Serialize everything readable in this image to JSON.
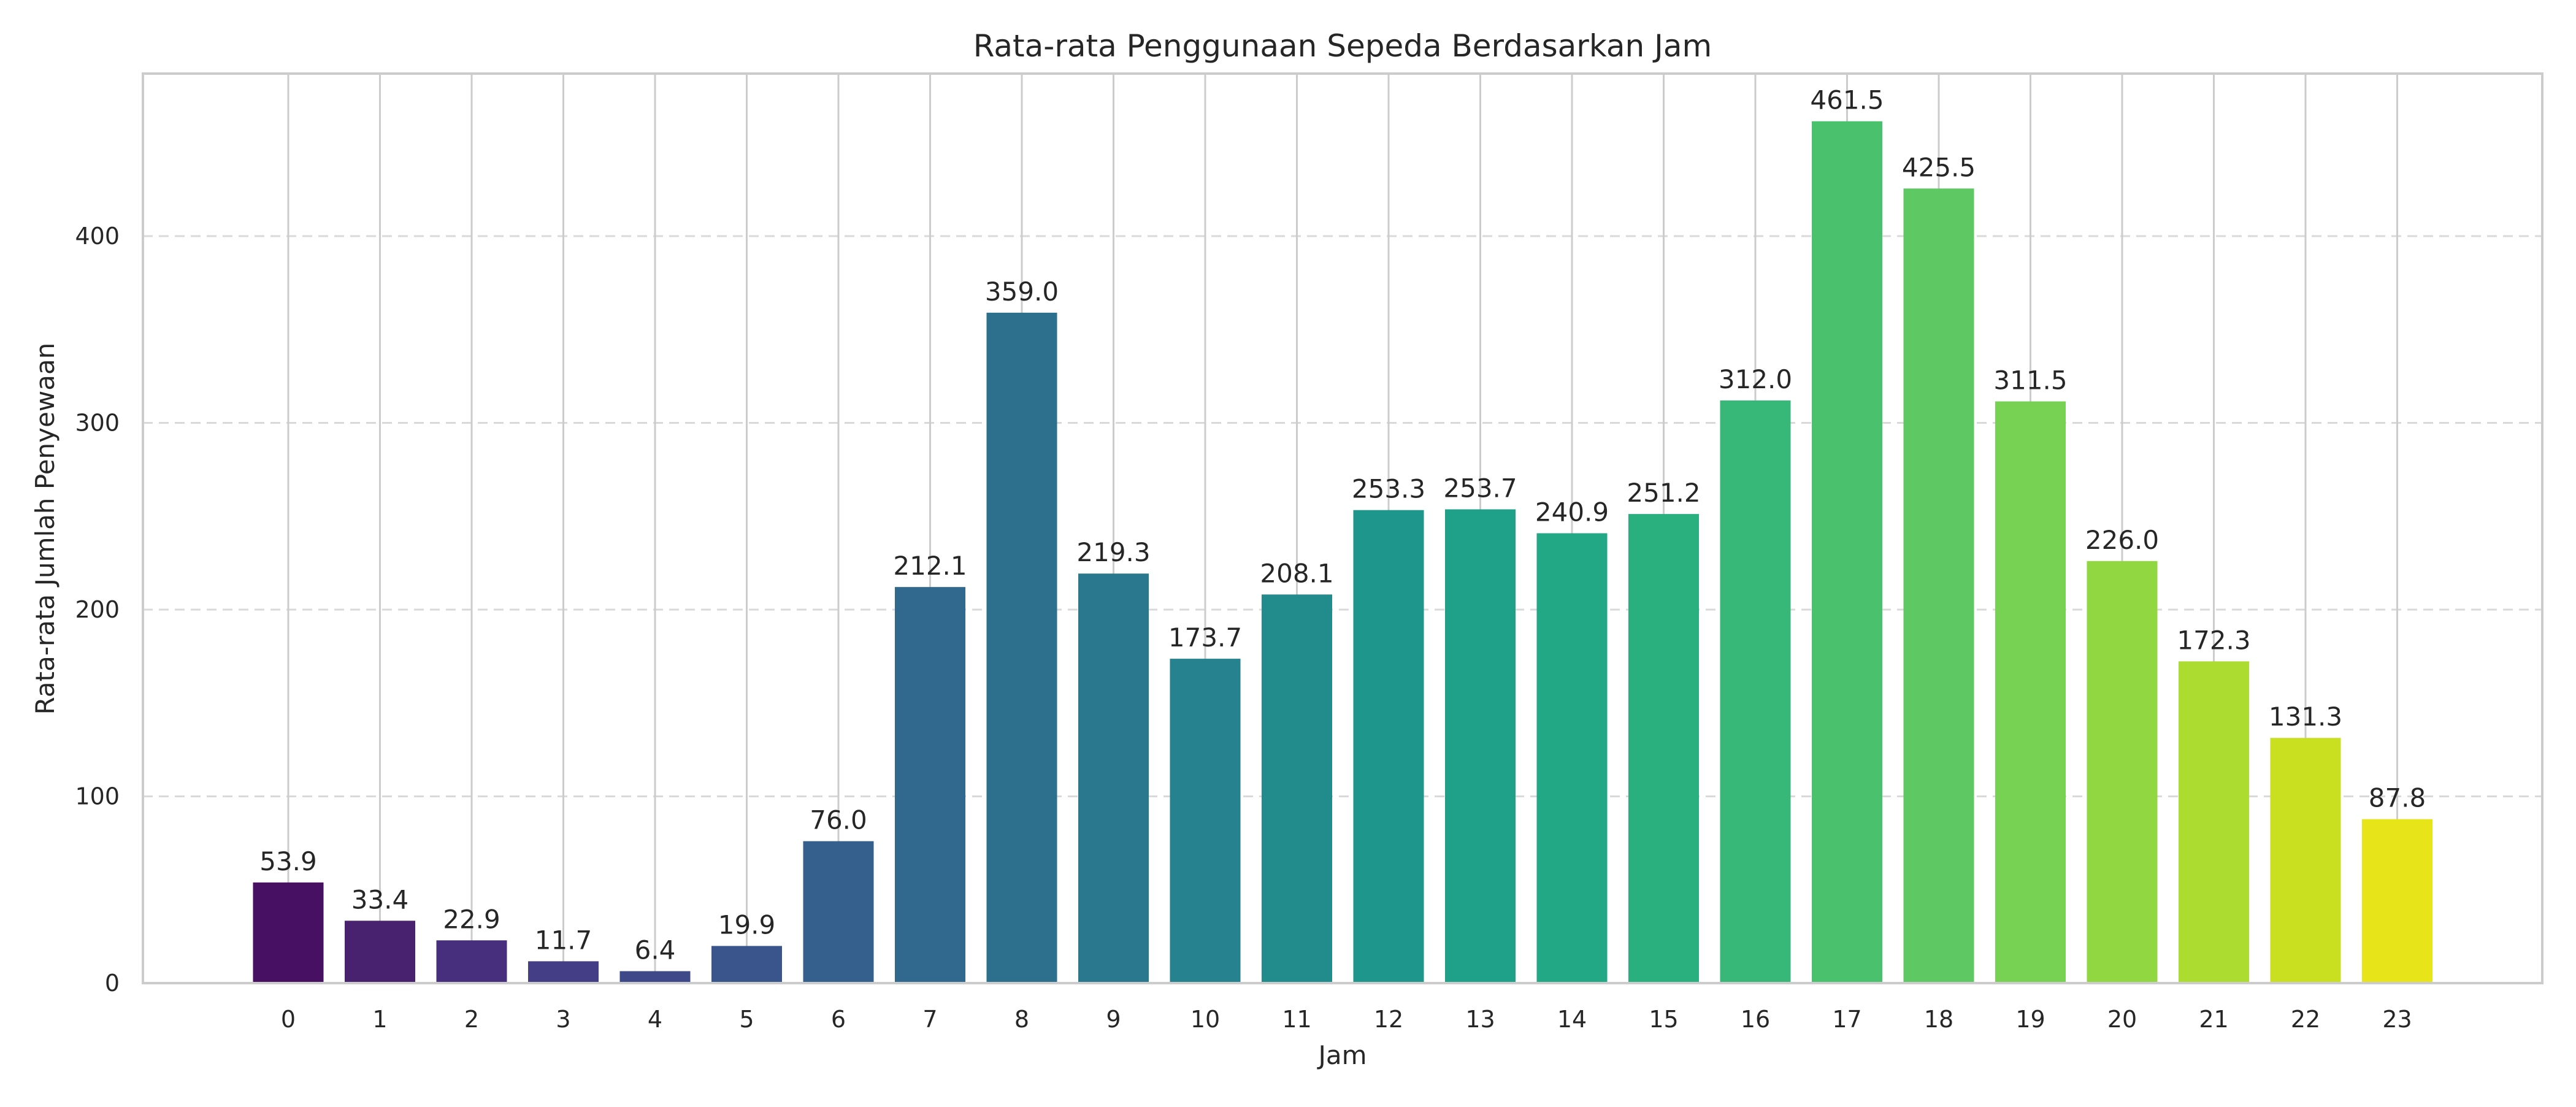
{
  "chart_data": {
    "type": "bar",
    "title": "Rata-rata Penggunaan Sepeda Berdasarkan Jam",
    "xlabel": "Jam",
    "ylabel": "Rata-rata Jumlah Penyewaan",
    "categories": [
      "0",
      "1",
      "2",
      "3",
      "4",
      "5",
      "6",
      "7",
      "8",
      "9",
      "10",
      "11",
      "12",
      "13",
      "14",
      "15",
      "16",
      "17",
      "18",
      "19",
      "20",
      "21",
      "22",
      "23"
    ],
    "values": [
      53.9,
      33.4,
      22.9,
      11.7,
      6.4,
      19.9,
      76.0,
      212.1,
      359.0,
      219.3,
      173.7,
      208.1,
      253.3,
      253.7,
      240.9,
      251.2,
      312.0,
      461.5,
      425.5,
      311.5,
      226.0,
      172.3,
      131.3,
      87.8
    ],
    "data_labels": [
      "53.9",
      "33.4",
      "22.9",
      "11.7",
      "6.4",
      "19.9",
      "76.0",
      "212.1",
      "359.0",
      "219.3",
      "173.7",
      "208.1",
      "253.3",
      "253.7",
      "240.9",
      "251.2",
      "312.0",
      "461.5",
      "425.5",
      "311.5",
      "226.0",
      "172.3",
      "131.3",
      "87.8"
    ],
    "ylim": [
      0,
      485
    ],
    "yticks": [
      0,
      100,
      200,
      300,
      400
    ],
    "grid": "y dashed, x solid",
    "colors": [
      "#471063",
      "#48226e",
      "#472f7d",
      "#433e85",
      "#3e4989",
      "#3a548c",
      "#355f8d",
      "#31688e",
      "#2d708e",
      "#2a788e",
      "#26828e",
      "#228c8d",
      "#1f968b",
      "#1fa088",
      "#22a884",
      "#2ab07f",
      "#37b878",
      "#4ac16d",
      "#5ec962",
      "#77d153",
      "#91d742",
      "#addc30",
      "#c8e020",
      "#e7e419"
    ]
  }
}
